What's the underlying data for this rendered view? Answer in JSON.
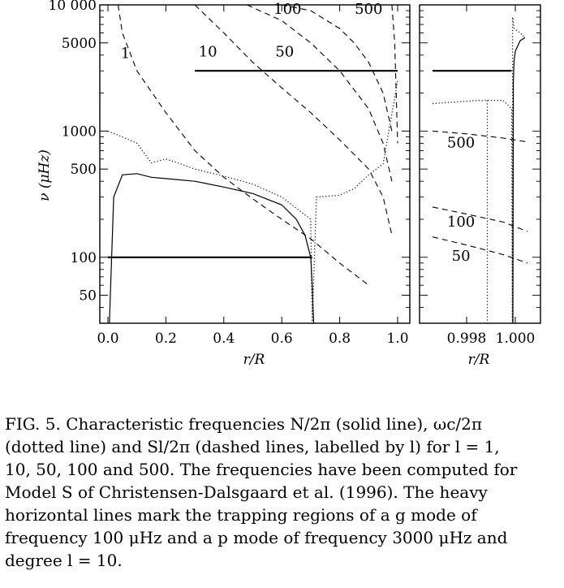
{
  "chart_data": [
    {
      "type": "line",
      "panel": "left",
      "xlabel": "r/R",
      "ylabel": "ν (μHz)",
      "xlim": [
        0.0,
        1.0
      ],
      "ylim": [
        30,
        10000
      ],
      "yscale": "log",
      "xticks": [
        "0.0",
        "0.2",
        "0.4",
        "0.6",
        "0.8",
        "1.0"
      ],
      "yticks": [
        "50",
        "100",
        "500",
        "1000",
        "5000",
        "10 000"
      ],
      "ytick_values": [
        50,
        100,
        500,
        1000,
        5000,
        10000
      ],
      "curve_labels": [
        "1",
        "10",
        "50",
        "100",
        "500"
      ],
      "series": [
        {
          "style": "solid",
          "x": [
            0.005,
            0.02,
            0.05,
            0.1,
            0.15,
            0.2,
            0.3,
            0.4,
            0.5,
            0.6,
            0.65,
            0.68,
            0.7,
            0.705,
            0.71
          ],
          "y": [
            30,
            300,
            450,
            460,
            430,
            420,
            400,
            360,
            320,
            260,
            200,
            150,
            100,
            60,
            30
          ]
        },
        {
          "style": "dotted",
          "x": [
            0.0,
            0.05,
            0.1,
            0.15,
            0.2,
            0.25,
            0.3,
            0.4,
            0.5,
            0.6,
            0.7,
            0.705,
            0.72,
            0.8,
            0.85,
            0.9,
            0.95,
            1.0
          ],
          "y": [
            1000,
            900,
            800,
            560,
            600,
            550,
            500,
            440,
            380,
            300,
            200,
            30,
            300,
            310,
            350,
            450,
            550,
            2500
          ]
        },
        {
          "style": "dashed",
          "x": [
            0.035,
            0.05,
            0.1,
            0.2,
            0.3,
            0.4,
            0.5,
            0.6,
            0.7,
            0.8,
            0.9
          ],
          "y": [
            10000,
            6000,
            3000,
            1400,
            700,
            430,
            290,
            200,
            140,
            90,
            60
          ]
        },
        {
          "style": "dashed",
          "x": [
            0.3,
            0.4,
            0.5,
            0.6,
            0.7,
            0.8,
            0.9,
            0.95,
            0.98
          ],
          "y": [
            10000,
            6000,
            3500,
            2200,
            1400,
            850,
            500,
            300,
            150
          ]
        },
        {
          "style": "dashed",
          "x": [
            0.48,
            0.6,
            0.7,
            0.8,
            0.9,
            0.95,
            0.98
          ],
          "y": [
            10000,
            7500,
            5000,
            3000,
            1500,
            800,
            400
          ]
        },
        {
          "style": "dashed",
          "x": [
            0.6,
            0.7,
            0.8,
            0.85,
            0.9,
            0.95,
            0.98
          ],
          "y": [
            10000,
            9000,
            6500,
            5000,
            3500,
            2000,
            1000
          ]
        },
        {
          "style": "dashed",
          "x": [
            0.98,
            0.99,
            0.995,
            1.0
          ],
          "y": [
            10000,
            5000,
            2000,
            800
          ]
        },
        {
          "style": "heavy",
          "x": [
            0.0,
            0.705
          ],
          "y": [
            100,
            100
          ]
        },
        {
          "style": "heavy",
          "x": [
            0.3,
            1.0
          ],
          "y": [
            3000,
            3000
          ]
        }
      ]
    },
    {
      "type": "line",
      "panel": "right",
      "xlabel": "r/R",
      "xlim": [
        0.9966,
        1.0006
      ],
      "ylim": [
        30,
        10000
      ],
      "yscale": "log",
      "xticks": [
        "0.998",
        "1.000"
      ],
      "curve_labels": [
        "500",
        "100",
        "50"
      ],
      "series": [
        {
          "style": "solid",
          "x": [
            0.9999,
            0.99992,
            0.99995,
            1.0,
            1.0002,
            1.0004
          ],
          "y": [
            30,
            2500,
            3600,
            4300,
            5200,
            5500
          ]
        },
        {
          "style": "dotted",
          "x": [
            0.9966,
            0.9975,
            0.9985,
            0.9995,
            0.99985,
            0.99988,
            0.99989,
            0.99995,
            1.0002,
            1.0004
          ],
          "y": [
            1650,
            1700,
            1750,
            1750,
            1500,
            30,
            8000,
            6500,
            6000,
            5500
          ]
        },
        {
          "style": "dotted",
          "x": [
            0.99885,
            0.99885
          ],
          "y": [
            1750,
            30
          ]
        },
        {
          "style": "dashed",
          "x": [
            0.9966,
            0.998,
            0.9995,
            1.0005
          ],
          "y": [
            1000,
            950,
            880,
            820
          ]
        },
        {
          "style": "dashed",
          "x": [
            0.9966,
            0.998,
            0.9995,
            1.0005
          ],
          "y": [
            250,
            220,
            190,
            160
          ]
        },
        {
          "style": "dashed",
          "x": [
            0.9966,
            0.998,
            0.9995,
            1.0005
          ],
          "y": [
            145,
            125,
            105,
            90
          ]
        },
        {
          "style": "heavy",
          "x": [
            0.9966,
            0.99985
          ],
          "y": [
            3000,
            3000
          ]
        }
      ]
    }
  ],
  "caption": {
    "lines": [
      "FIG. 5. Characteristic frequencies N/2π (solid line), ωc/2π",
      "(dotted line) and Sl/2π (dashed lines, labelled by l) for l = 1,",
      "10, 50, 100 and 500. The frequencies have been computed for",
      "Model S of Christensen-Dalsgaard et al. (1996). The heavy",
      "horizontal lines mark the trapping regions of a g mode of",
      "frequency 100 μHz and a p mode of frequency 3000 μHz and",
      "degree l = 10."
    ]
  }
}
